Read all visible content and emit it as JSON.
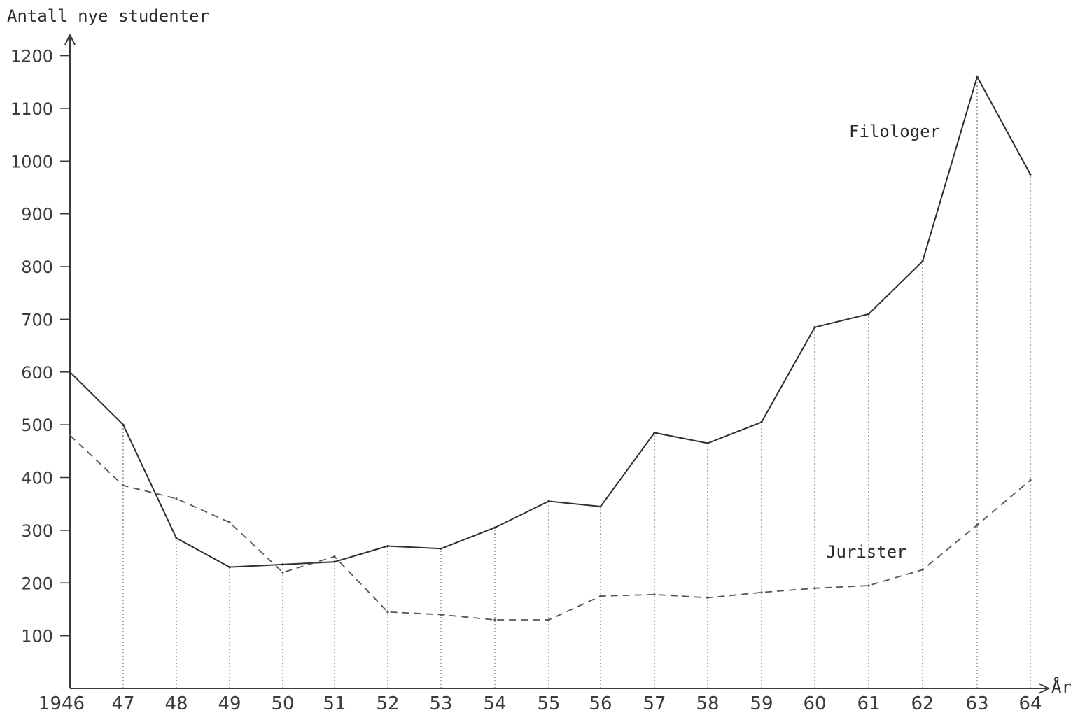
{
  "chart_data": {
    "type": "line",
    "ylabel": "Antall nye studenter",
    "xlabel": "År",
    "x_tick_labels": [
      "1946",
      "47",
      "48",
      "49",
      "50",
      "51",
      "52",
      "53",
      "54",
      "55",
      "56",
      "57",
      "58",
      "59",
      "60",
      "61",
      "62",
      "63",
      "64"
    ],
    "x": [
      1946,
      1947,
      1948,
      1949,
      1950,
      1951,
      1952,
      1953,
      1954,
      1955,
      1956,
      1957,
      1958,
      1959,
      1960,
      1961,
      1962,
      1963,
      1964
    ],
    "y_ticks": [
      100,
      200,
      300,
      400,
      500,
      600,
      700,
      800,
      900,
      1000,
      1100,
      1200
    ],
    "ylim": [
      0,
      1200
    ],
    "grid": false,
    "series": [
      {
        "name": "Filologer",
        "style": "solid",
        "values": [
          600,
          500,
          285,
          230,
          235,
          240,
          270,
          265,
          305,
          355,
          345,
          485,
          465,
          505,
          685,
          710,
          810,
          1160,
          975
        ]
      },
      {
        "name": "Jurister",
        "style": "dashed",
        "values": [
          480,
          385,
          360,
          315,
          220,
          250,
          145,
          140,
          130,
          130,
          175,
          178,
          172,
          182,
          190,
          195,
          225,
          310,
          395
        ]
      }
    ]
  }
}
